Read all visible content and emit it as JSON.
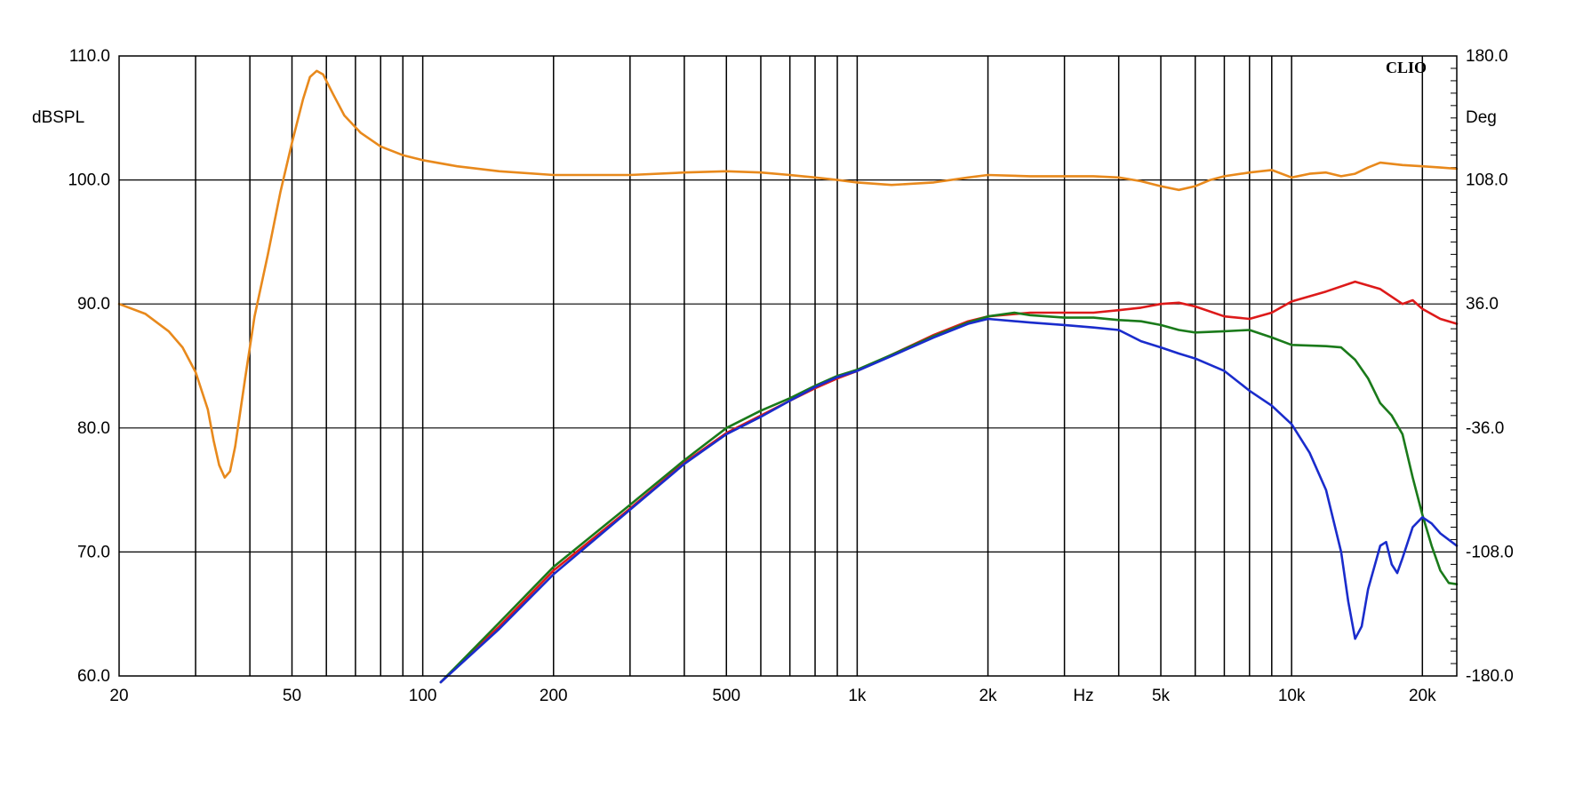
{
  "chart_data": {
    "type": "line",
    "title": "",
    "brand": "CLIO",
    "xlabel": "Hz",
    "ylabel_left": "dBSPL",
    "ylabel_right": "Deg",
    "x_scale": "log",
    "xlim": [
      20,
      24000
    ],
    "ylim": [
      60,
      110
    ],
    "ylim_right": [
      -180,
      180
    ],
    "grid": true,
    "x_ticks": [
      {
        "v": 20,
        "t": "20"
      },
      {
        "v": 50,
        "t": "50"
      },
      {
        "v": 100,
        "t": "100"
      },
      {
        "v": 200,
        "t": "200"
      },
      {
        "v": 500,
        "t": "500"
      },
      {
        "v": 1000,
        "t": "1k"
      },
      {
        "v": 2000,
        "t": "2k"
      },
      {
        "v": 5000,
        "t": "5k"
      },
      {
        "v": 10000,
        "t": "10k"
      },
      {
        "v": 20000,
        "t": "20k"
      }
    ],
    "y_ticks_left": [
      {
        "v": 60,
        "t": "60.0"
      },
      {
        "v": 70,
        "t": "70.0"
      },
      {
        "v": 80,
        "t": "80.0"
      },
      {
        "v": 90,
        "t": "90.0"
      },
      {
        "v": 100,
        "t": "100.0"
      },
      {
        "v": 110,
        "t": "110.0"
      }
    ],
    "y_ticks_right": [
      {
        "v": -180,
        "t": "-180.0"
      },
      {
        "v": -108,
        "t": "-108.0"
      },
      {
        "v": -36,
        "t": "-36.0"
      },
      {
        "v": 36,
        "t": "36.0"
      },
      {
        "v": 108,
        "t": "108.0"
      },
      {
        "v": 180,
        "t": "180.0"
      }
    ],
    "series": [
      {
        "color": "#e8891c",
        "points": [
          [
            20,
            90.0
          ],
          [
            23,
            89.2
          ],
          [
            26,
            87.8
          ],
          [
            28,
            86.5
          ],
          [
            30,
            84.5
          ],
          [
            32,
            81.5
          ],
          [
            33,
            79.0
          ],
          [
            34,
            77.0
          ],
          [
            35,
            76.0
          ],
          [
            36,
            76.5
          ],
          [
            37,
            78.5
          ],
          [
            39,
            84.0
          ],
          [
            41,
            89.0
          ],
          [
            44,
            94.0
          ],
          [
            47,
            99.0
          ],
          [
            50,
            103.0
          ],
          [
            53,
            106.5
          ],
          [
            55,
            108.3
          ],
          [
            57,
            108.8
          ],
          [
            59,
            108.5
          ],
          [
            62,
            107.0
          ],
          [
            66,
            105.2
          ],
          [
            72,
            103.8
          ],
          [
            80,
            102.7
          ],
          [
            90,
            102.0
          ],
          [
            100,
            101.6
          ],
          [
            120,
            101.1
          ],
          [
            150,
            100.7
          ],
          [
            200,
            100.4
          ],
          [
            300,
            100.4
          ],
          [
            400,
            100.6
          ],
          [
            500,
            100.7
          ],
          [
            600,
            100.6
          ],
          [
            700,
            100.4
          ],
          [
            800,
            100.2
          ],
          [
            900,
            100.0
          ],
          [
            1000,
            99.8
          ],
          [
            1200,
            99.6
          ],
          [
            1500,
            99.8
          ],
          [
            1800,
            100.2
          ],
          [
            2000,
            100.4
          ],
          [
            2500,
            100.3
          ],
          [
            3000,
            100.3
          ],
          [
            3500,
            100.3
          ],
          [
            4000,
            100.2
          ],
          [
            4500,
            99.9
          ],
          [
            5000,
            99.5
          ],
          [
            5500,
            99.2
          ],
          [
            6000,
            99.5
          ],
          [
            6500,
            100.0
          ],
          [
            7000,
            100.3
          ],
          [
            8000,
            100.6
          ],
          [
            9000,
            100.8
          ],
          [
            10000,
            100.2
          ],
          [
            11000,
            100.5
          ],
          [
            12000,
            100.6
          ],
          [
            13000,
            100.3
          ],
          [
            14000,
            100.5
          ],
          [
            15000,
            101.0
          ],
          [
            16000,
            101.4
          ],
          [
            18000,
            101.2
          ],
          [
            20000,
            101.1
          ],
          [
            22000,
            101.0
          ],
          [
            24000,
            100.9
          ]
        ]
      },
      {
        "color": "#dd1a1a",
        "points": [
          [
            110,
            59.5
          ],
          [
            150,
            64.0
          ],
          [
            200,
            68.5
          ],
          [
            300,
            73.5
          ],
          [
            400,
            77.2
          ],
          [
            500,
            79.6
          ],
          [
            600,
            81.0
          ],
          [
            700,
            82.2
          ],
          [
            800,
            83.2
          ],
          [
            900,
            84.0
          ],
          [
            1000,
            84.6
          ],
          [
            1200,
            85.9
          ],
          [
            1500,
            87.5
          ],
          [
            1800,
            88.6
          ],
          [
            2000,
            89.0
          ],
          [
            2500,
            89.3
          ],
          [
            3000,
            89.3
          ],
          [
            3500,
            89.3
          ],
          [
            4000,
            89.5
          ],
          [
            4500,
            89.7
          ],
          [
            5000,
            90.0
          ],
          [
            5500,
            90.1
          ],
          [
            6000,
            89.8
          ],
          [
            7000,
            89.0
          ],
          [
            8000,
            88.8
          ],
          [
            9000,
            89.3
          ],
          [
            10000,
            90.2
          ],
          [
            12000,
            91.0
          ],
          [
            14000,
            91.8
          ],
          [
            16000,
            91.2
          ],
          [
            18000,
            90.0
          ],
          [
            19000,
            90.3
          ],
          [
            20000,
            89.6
          ],
          [
            22000,
            88.8
          ],
          [
            24000,
            88.4
          ]
        ]
      },
      {
        "color": "#1a7a1a",
        "points": [
          [
            110,
            59.5
          ],
          [
            150,
            64.3
          ],
          [
            200,
            68.8
          ],
          [
            300,
            73.8
          ],
          [
            400,
            77.4
          ],
          [
            500,
            80.0
          ],
          [
            600,
            81.4
          ],
          [
            700,
            82.4
          ],
          [
            800,
            83.4
          ],
          [
            900,
            84.2
          ],
          [
            1000,
            84.7
          ],
          [
            1200,
            85.9
          ],
          [
            1500,
            87.4
          ],
          [
            1800,
            88.5
          ],
          [
            2000,
            89.0
          ],
          [
            2300,
            89.3
          ],
          [
            2500,
            89.1
          ],
          [
            3000,
            88.9
          ],
          [
            3500,
            88.9
          ],
          [
            4000,
            88.7
          ],
          [
            4500,
            88.6
          ],
          [
            5000,
            88.3
          ],
          [
            5500,
            87.9
          ],
          [
            6000,
            87.7
          ],
          [
            7000,
            87.8
          ],
          [
            8000,
            87.9
          ],
          [
            9000,
            87.3
          ],
          [
            10000,
            86.7
          ],
          [
            12000,
            86.6
          ],
          [
            13000,
            86.5
          ],
          [
            14000,
            85.5
          ],
          [
            15000,
            84.0
          ],
          [
            16000,
            82.0
          ],
          [
            17000,
            81.0
          ],
          [
            18000,
            79.5
          ],
          [
            19000,
            76.0
          ],
          [
            20000,
            73.0
          ],
          [
            21000,
            70.5
          ],
          [
            22000,
            68.5
          ],
          [
            23000,
            67.5
          ],
          [
            24000,
            67.4
          ]
        ]
      },
      {
        "color": "#1a2ccc",
        "points": [
          [
            110,
            59.5
          ],
          [
            150,
            63.8
          ],
          [
            200,
            68.2
          ],
          [
            300,
            73.4
          ],
          [
            400,
            77.1
          ],
          [
            500,
            79.5
          ],
          [
            600,
            80.9
          ],
          [
            700,
            82.2
          ],
          [
            800,
            83.3
          ],
          [
            900,
            84.1
          ],
          [
            1000,
            84.6
          ],
          [
            1200,
            85.8
          ],
          [
            1500,
            87.3
          ],
          [
            1800,
            88.4
          ],
          [
            2000,
            88.8
          ],
          [
            2500,
            88.5
          ],
          [
            3000,
            88.3
          ],
          [
            3500,
            88.1
          ],
          [
            4000,
            87.9
          ],
          [
            4500,
            87.0
          ],
          [
            5000,
            86.5
          ],
          [
            5500,
            86.0
          ],
          [
            6000,
            85.6
          ],
          [
            7000,
            84.6
          ],
          [
            8000,
            83.0
          ],
          [
            9000,
            81.8
          ],
          [
            10000,
            80.3
          ],
          [
            11000,
            78.0
          ],
          [
            12000,
            75.0
          ],
          [
            13000,
            70.0
          ],
          [
            13500,
            66.0
          ],
          [
            14000,
            63.0
          ],
          [
            14500,
            64.0
          ],
          [
            15000,
            67.0
          ],
          [
            16000,
            70.5
          ],
          [
            16500,
            70.8
          ],
          [
            17000,
            69.0
          ],
          [
            17500,
            68.3
          ],
          [
            18000,
            69.5
          ],
          [
            19000,
            72.0
          ],
          [
            20000,
            72.8
          ],
          [
            21000,
            72.3
          ],
          [
            22000,
            71.5
          ],
          [
            24000,
            70.5
          ]
        ]
      }
    ]
  }
}
